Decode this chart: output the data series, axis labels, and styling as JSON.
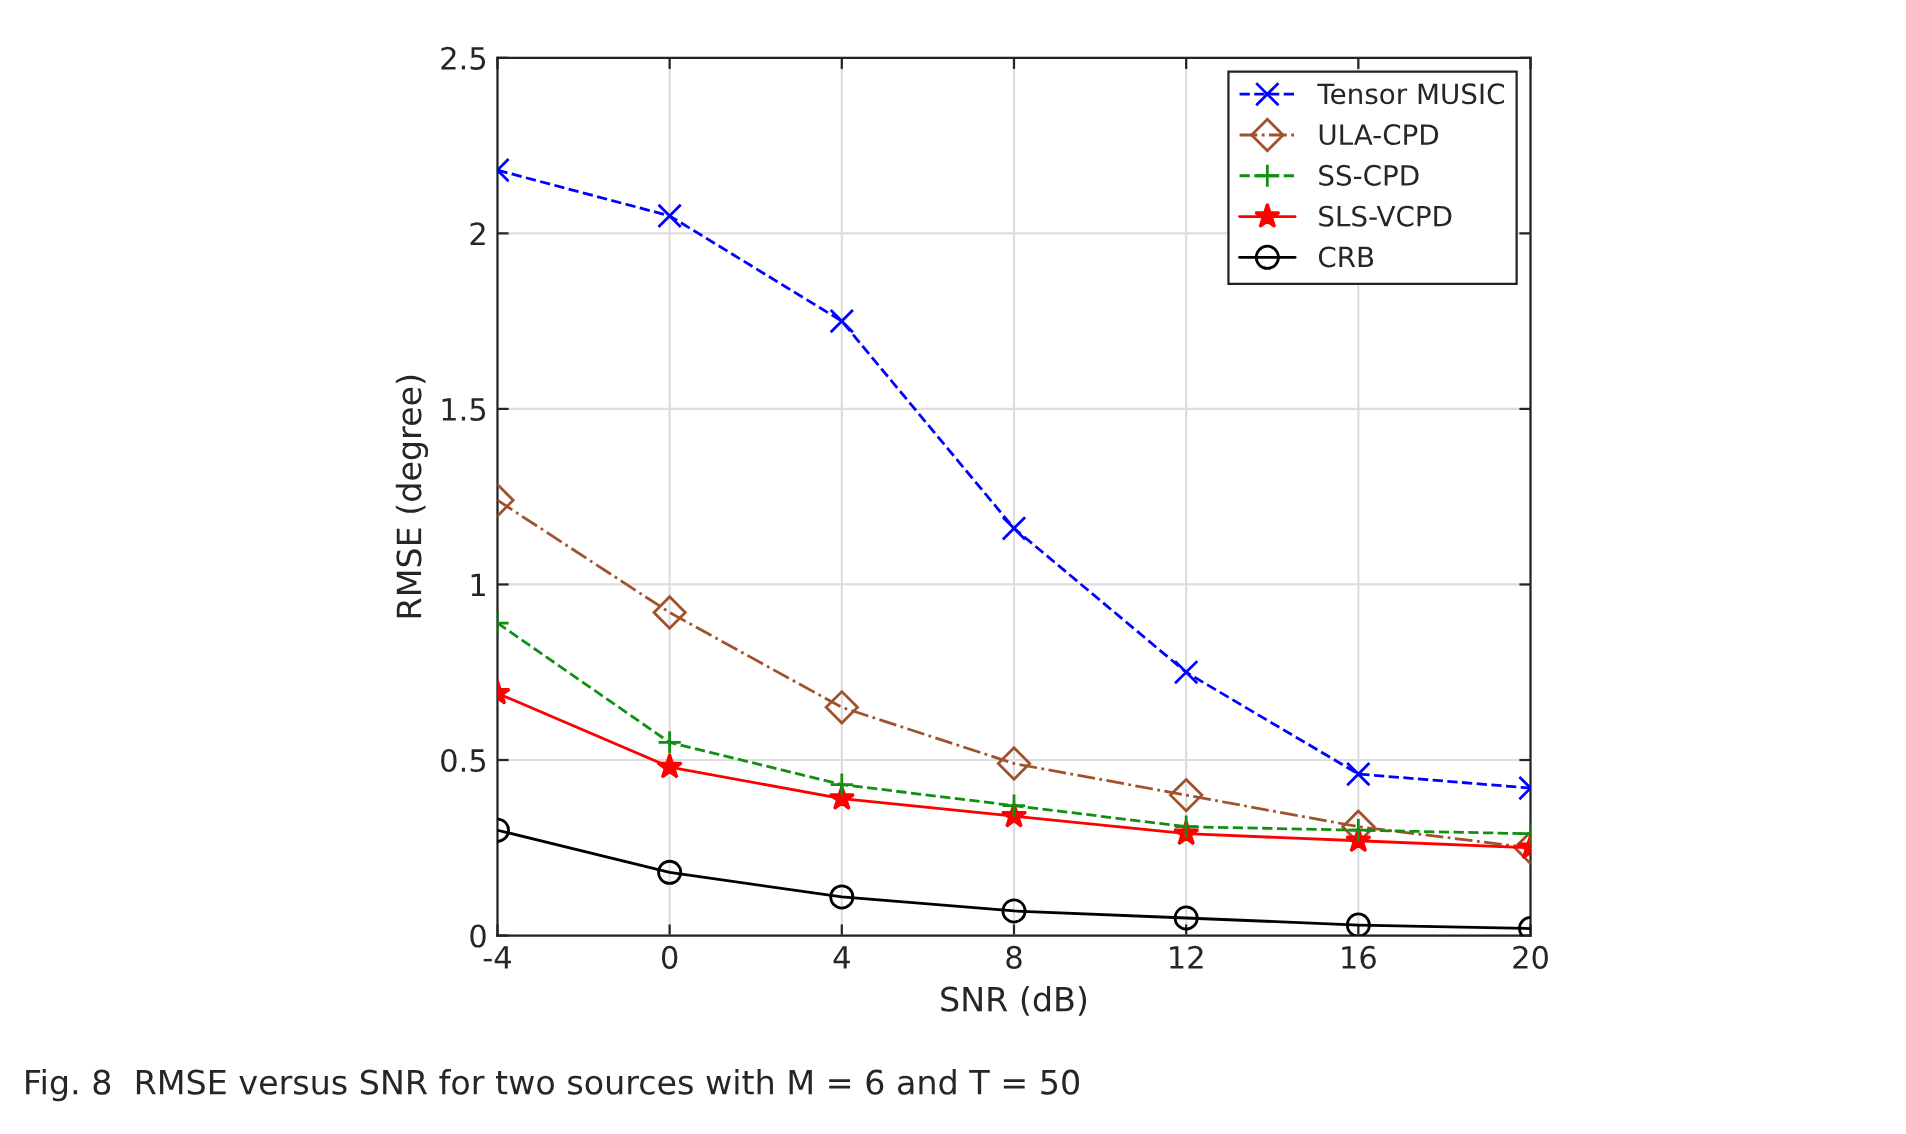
{
  "chart_data": {
    "type": "line",
    "xlabel": "SNR (dB)",
    "ylabel": "RMSE (degree)",
    "x": [
      -4,
      0,
      4,
      8,
      12,
      16,
      20
    ],
    "series": [
      {
        "name": "Tensor MUSIC",
        "color": "#0000ff",
        "marker": "cross",
        "line_style": "dashed",
        "values": [
          2.18,
          2.05,
          1.75,
          1.16,
          0.75,
          0.46,
          0.42
        ]
      },
      {
        "name": "ULA-CPD",
        "color": "#a0522d",
        "marker": "diamond",
        "line_style": "dashdot",
        "values": [
          1.24,
          0.92,
          0.65,
          0.49,
          0.4,
          0.31,
          0.25
        ]
      },
      {
        "name": "SS-CPD",
        "color": "#109010",
        "marker": "plus",
        "line_style": "dashed",
        "values": [
          0.89,
          0.55,
          0.43,
          0.37,
          0.31,
          0.3,
          0.29
        ]
      },
      {
        "name": "SLS-VCPD",
        "color": "#ff0000",
        "marker": "star",
        "line_style": "solid",
        "values": [
          0.69,
          0.48,
          0.39,
          0.34,
          0.29,
          0.27,
          0.25
        ]
      },
      {
        "name": "CRB",
        "color": "#000000",
        "marker": "circle",
        "line_style": "solid",
        "values": [
          0.3,
          0.18,
          0.11,
          0.07,
          0.05,
          0.03,
          0.02
        ]
      }
    ],
    "xlim": [
      -4,
      20
    ],
    "xticks": [
      -4,
      0,
      4,
      8,
      12,
      16,
      20
    ],
    "ylim": [
      0,
      2.5
    ],
    "yticks": [
      0,
      0.5,
      1,
      1.5,
      2,
      2.5
    ],
    "grid": true,
    "legend": "top right",
    "annotations": [
      "Fig. 8  RMSE versus SNR for two sources with M = 6 and T = 50"
    ]
  }
}
